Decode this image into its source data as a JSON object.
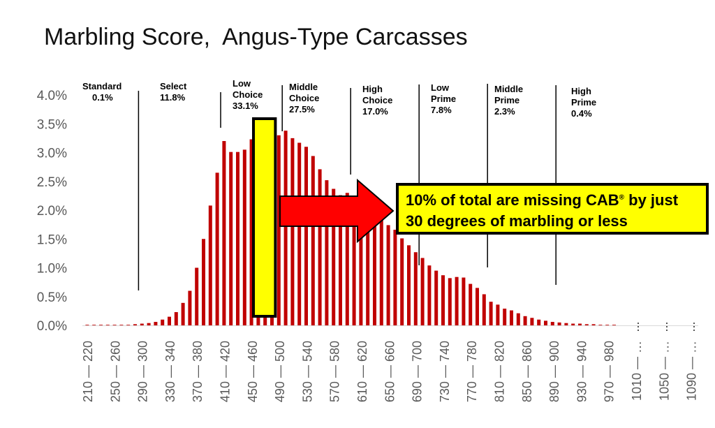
{
  "chart_data": {
    "type": "bar",
    "title": "Marbling Score,  Angus-Type Carcasses",
    "xlabel": "",
    "ylabel": "",
    "ylim": [
      0,
      0.04
    ],
    "yticks": [
      "0.0%",
      "0.5%",
      "1.0%",
      "1.5%",
      "2.0%",
      "2.5%",
      "3.0%",
      "3.5%",
      "4.0%"
    ],
    "grid": false,
    "bar_color": "#c00000",
    "bins_start": [
      210,
      220,
      230,
      240,
      250,
      260,
      270,
      280,
      290,
      300,
      310,
      320,
      330,
      340,
      350,
      360,
      370,
      380,
      390,
      400,
      410,
      420,
      430,
      440,
      450,
      460,
      470,
      480,
      490,
      500,
      510,
      520,
      530,
      540,
      550,
      560,
      570,
      580,
      590,
      600,
      610,
      620,
      630,
      640,
      650,
      660,
      670,
      680,
      690,
      700,
      710,
      720,
      730,
      740,
      750,
      760,
      770,
      780,
      790,
      800,
      810,
      820,
      830,
      840,
      850,
      860,
      870,
      880,
      890,
      900,
      910,
      920,
      930,
      940,
      950,
      960,
      970,
      980
    ],
    "values": [
      0.0001,
      0.0001,
      0.0001,
      0.0001,
      0.0001,
      0.0001,
      0.0001,
      0.0002,
      0.0003,
      0.0004,
      0.0006,
      0.001,
      0.0015,
      0.0023,
      0.0039,
      0.006,
      0.01,
      0.015,
      0.0208,
      0.0265,
      0.032,
      0.0301,
      0.0301,
      0.0305,
      0.0323,
      0.0339,
      0.0337,
      0.0335,
      0.033,
      0.0338,
      0.0325,
      0.0317,
      0.031,
      0.0294,
      0.0271,
      0.0252,
      0.0237,
      0.0226,
      0.023,
      0.0217,
      0.0225,
      0.0215,
      0.0199,
      0.0188,
      0.0174,
      0.0166,
      0.0151,
      0.0139,
      0.0127,
      0.0117,
      0.0104,
      0.0095,
      0.0087,
      0.0082,
      0.0084,
      0.0083,
      0.0072,
      0.0065,
      0.0054,
      0.0041,
      0.0036,
      0.0029,
      0.0026,
      0.0021,
      0.0016,
      0.0013,
      0.001,
      0.0008,
      0.0006,
      0.0005,
      0.0004,
      0.0003,
      0.0003,
      0.0002,
      0.0002,
      0.0001,
      0.0001,
      0.0001
    ],
    "x_tick_labels": [
      "210 — 220",
      "250 — 260",
      "290 — 300",
      "330 — 340",
      "370 — 380",
      "410 — 420",
      "450 — 460",
      "490 — 500",
      "530 — 540",
      "570 — 580",
      "610 — 620",
      "650 — 660",
      "690 — 700",
      "730 — 740",
      "770 — 780",
      "810 — 820",
      "850 — 860",
      "890 — 900",
      "930 — 940",
      "970 — 980",
      "1010 — …",
      "1050 — …",
      "1090 — …"
    ],
    "dividers": [
      290,
      410,
      500,
      600,
      700,
      800,
      900
    ],
    "bands": [
      {
        "name": "Standard",
        "pct": "0.1%"
      },
      {
        "name": "Select",
        "pct": "11.8%"
      },
      {
        "name": "Low\nChoice",
        "pct": "33.1%"
      },
      {
        "name": "Middle\nChoice",
        "pct": "27.5%"
      },
      {
        "name": "High\nChoice",
        "pct": "17.0%"
      },
      {
        "name": "Low\nPrime",
        "pct": "7.8%"
      },
      {
        "name": "Middle\nPrime",
        "pct": "2.3%"
      },
      {
        "name": "High\nPrime",
        "pct": "0.4%"
      }
    ],
    "highlight": {
      "from": 460,
      "to": 490,
      "color": "#ffff00"
    },
    "callout": {
      "line1_pre": "10% of total are missing CAB",
      "line1_sup": "®",
      "line1_post": " by just",
      "line2": "30 degrees of marbling or less",
      "arrow_color": "#ff0000",
      "box_color": "#ffff00"
    }
  }
}
